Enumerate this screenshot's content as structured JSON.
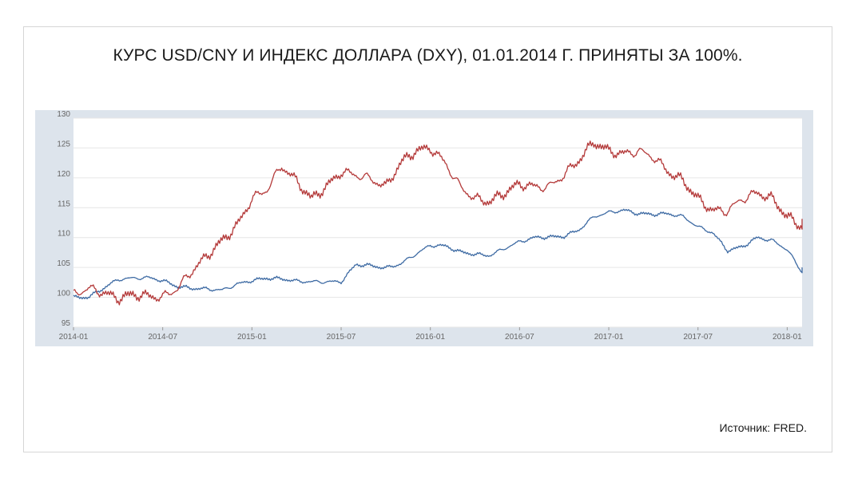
{
  "title": "КУРС USD/CNY И ИНДЕКС ДОЛЛАРА (DXY), 01.01.2014 Г. ПРИНЯТЫ ЗА 100%.",
  "source": "Источник: FRED.",
  "colors": {
    "usdcny": "#3d6aa3",
    "dxy": "#b43a3a",
    "frame": "#dde4ec",
    "grid": "#e6e6e6",
    "axis_text": "#666666"
  },
  "chart_data": {
    "type": "line",
    "title": "",
    "xlabel": "",
    "ylabel": "",
    "ylim": [
      95,
      130
    ],
    "yticks": [
      95,
      100,
      105,
      110,
      115,
      120,
      125,
      130
    ],
    "xlim": [
      "2014-01",
      "2018-02"
    ],
    "xticks": [
      "2014-01",
      "2014-07",
      "2015-01",
      "2015-07",
      "2016-01",
      "2016-07",
      "2017-01",
      "2017-07",
      "2018-01"
    ],
    "grid": true,
    "legend": "none",
    "series": [
      {
        "id": "usdcny",
        "points": [
          [
            "2014-01",
            100.0
          ],
          [
            "2014-02",
            100.0
          ],
          [
            "2014-03",
            101.5
          ],
          [
            "2014-04",
            103.0
          ],
          [
            "2014-05",
            103.2
          ],
          [
            "2014-06",
            103.3
          ],
          [
            "2014-07",
            102.8
          ],
          [
            "2014-08",
            101.8
          ],
          [
            "2014-09",
            101.5
          ],
          [
            "2014-10",
            101.4
          ],
          [
            "2014-11",
            101.2
          ],
          [
            "2014-12",
            102.2
          ],
          [
            "2015-01",
            102.8
          ],
          [
            "2015-02",
            103.2
          ],
          [
            "2015-03",
            103.1
          ],
          [
            "2015-04",
            102.7
          ],
          [
            "2015-05",
            102.6
          ],
          [
            "2015-06",
            102.6
          ],
          [
            "2015-07",
            102.6
          ],
          [
            "2015-08",
            105.5
          ],
          [
            "2015-09",
            105.3
          ],
          [
            "2015-10",
            104.9
          ],
          [
            "2015-11",
            105.6
          ],
          [
            "2015-12",
            107.2
          ],
          [
            "2016-01",
            108.7
          ],
          [
            "2016-02",
            108.6
          ],
          [
            "2016-03",
            107.6
          ],
          [
            "2016-04",
            107.2
          ],
          [
            "2016-05",
            107.0
          ],
          [
            "2016-06",
            108.2
          ],
          [
            "2016-07",
            109.3
          ],
          [
            "2016-08",
            110.0
          ],
          [
            "2016-09",
            110.1
          ],
          [
            "2016-10",
            110.2
          ],
          [
            "2016-11",
            111.3
          ],
          [
            "2016-12",
            113.5
          ],
          [
            "2017-01",
            114.2
          ],
          [
            "2017-02",
            114.6
          ],
          [
            "2017-03",
            114.0
          ],
          [
            "2017-04",
            113.9
          ],
          [
            "2017-05",
            114.0
          ],
          [
            "2017-06",
            113.5
          ],
          [
            "2017-07",
            111.8
          ],
          [
            "2017-08",
            110.8
          ],
          [
            "2017-09",
            107.8
          ],
          [
            "2017-10",
            108.5
          ],
          [
            "2017-11",
            110.0
          ],
          [
            "2017-12",
            109.5
          ],
          [
            "2018-01",
            108.0
          ],
          [
            "2018-02",
            104.2
          ],
          [
            "2018-02",
            104.8
          ]
        ]
      },
      {
        "id": "dxy",
        "points": [
          [
            "2014-01",
            100.5
          ],
          [
            "2014-02",
            101.5
          ],
          [
            "2014-03",
            100.8
          ],
          [
            "2014-04",
            99.8
          ],
          [
            "2014-05",
            100.5
          ],
          [
            "2014-06",
            100.2
          ],
          [
            "2014-07",
            100.0
          ],
          [
            "2014-08",
            101.5
          ],
          [
            "2014-09",
            104.5
          ],
          [
            "2014-10",
            107.0
          ],
          [
            "2014-11",
            109.5
          ],
          [
            "2014-12",
            112.0
          ],
          [
            "2015-01",
            116.5
          ],
          [
            "2015-02",
            118.0
          ],
          [
            "2015-03",
            122.0
          ],
          [
            "2015-04",
            119.5
          ],
          [
            "2015-05",
            116.5
          ],
          [
            "2015-06",
            118.5
          ],
          [
            "2015-07",
            121.0
          ],
          [
            "2015-08",
            120.5
          ],
          [
            "2015-09",
            119.8
          ],
          [
            "2015-10",
            118.5
          ],
          [
            "2015-11",
            122.5
          ],
          [
            "2015-12",
            124.5
          ],
          [
            "2016-01",
            125.0
          ],
          [
            "2016-02",
            122.5
          ],
          [
            "2016-03",
            118.5
          ],
          [
            "2016-04",
            116.5
          ],
          [
            "2016-05",
            116.0
          ],
          [
            "2016-06",
            117.5
          ],
          [
            "2016-07",
            119.0
          ],
          [
            "2016-08",
            118.5
          ],
          [
            "2016-09",
            118.5
          ],
          [
            "2016-10",
            120.5
          ],
          [
            "2016-11",
            123.0
          ],
          [
            "2016-12",
            126.0
          ],
          [
            "2017-01",
            124.5
          ],
          [
            "2017-02",
            124.0
          ],
          [
            "2017-03",
            124.5
          ],
          [
            "2017-04",
            123.5
          ],
          [
            "2017-05",
            121.0
          ],
          [
            "2017-06",
            119.5
          ],
          [
            "2017-07",
            116.5
          ],
          [
            "2017-08",
            114.5
          ],
          [
            "2017-09",
            114.5
          ],
          [
            "2017-10",
            116.5
          ],
          [
            "2017-11",
            117.5
          ],
          [
            "2017-12",
            116.5
          ],
          [
            "2018-01",
            113.5
          ],
          [
            "2018-02",
            111.8
          ],
          [
            "2018-02",
            112.5
          ]
        ]
      }
    ]
  }
}
